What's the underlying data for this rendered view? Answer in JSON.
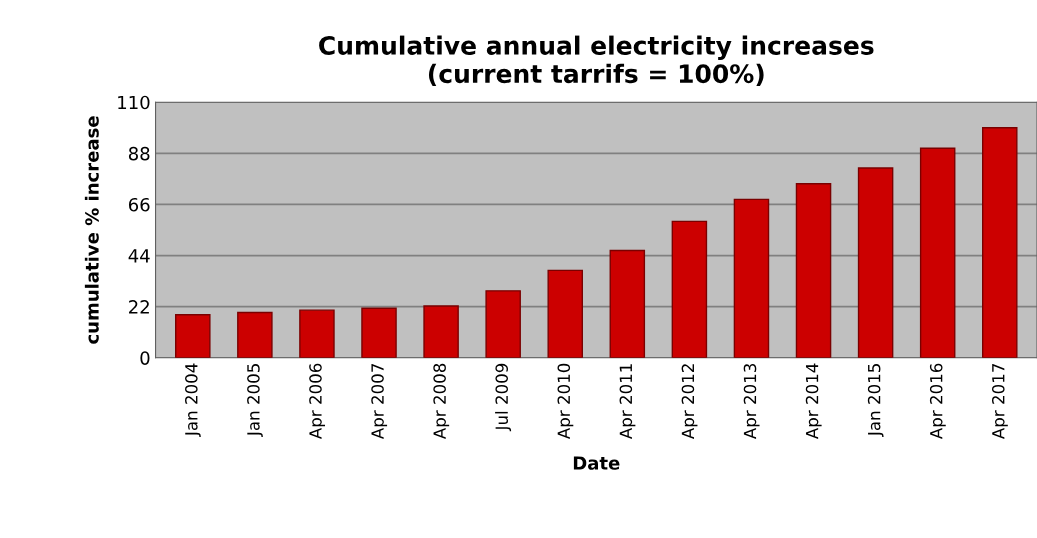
{
  "chart_data": {
    "type": "bar",
    "title": "Cumulative annual electricity increases\n(current tarrifs = 100%)",
    "xlabel": "Date",
    "ylabel": "cumulative % increase",
    "categories": [
      "Jan 2004",
      "Jan 2005",
      "Apr 2006",
      "Apr 2007",
      "Apr 2008",
      "Jul 2009",
      "Apr 2010",
      "Apr 2011",
      "Apr 2012",
      "Apr 2013",
      "Apr 2014",
      "Jan 2015",
      "Apr 2016",
      "Apr 2017"
    ],
    "values": [
      18.5,
      19.5,
      20.5,
      21.3,
      22.3,
      28.8,
      37.6,
      46.2,
      58.7,
      68.2,
      74.9,
      81.7,
      90.2,
      99.0
    ],
    "color": "#cc0000",
    "ylim": [
      0,
      110
    ],
    "yticks": [
      0,
      22,
      44,
      66,
      88,
      110
    ],
    "grid": "y"
  }
}
